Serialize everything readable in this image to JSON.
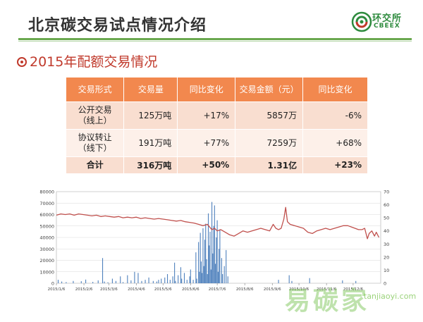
{
  "header": {
    "title": "北京碳交易试点情况介绍",
    "logo_cn": "环交所",
    "logo_en": "CBEEX",
    "subtitle": "2015年配额交易情况"
  },
  "table": {
    "headers": [
      "交易形式",
      "交易量",
      "同比变化",
      "交易金额（元）",
      "同比变化"
    ],
    "rows": [
      {
        "type_line1": "公开交易",
        "type_line2": "（线上）",
        "volume": "125万吨",
        "volume_change": "+17%",
        "amount": "5857万",
        "amount_change": "-6%"
      },
      {
        "type_line1": "协议转让",
        "type_line2": "（线下）",
        "volume": "191万吨",
        "volume_change": "+77%",
        "amount": "7259万",
        "amount_change": "+68%"
      },
      {
        "type_line1": "合计",
        "type_line2": "",
        "volume": "316万吨",
        "volume_change": "+50%",
        "amount": "1.31亿",
        "amount_change": "+23%"
      }
    ]
  },
  "watermark": {
    "cn": "易碳家",
    "en": "tanjiaoyi.com"
  },
  "chart_data": {
    "type": "bar+line",
    "x_ticks": [
      "2015/1/6",
      "2015/2/6",
      "2015/3/6",
      "2015/4/6",
      "2015/5/6",
      "2015/6/6",
      "2015/7/6",
      "2015/8/6",
      "2015/9/6",
      "2015/10/6",
      "2015/11/6",
      "2015/12/6"
    ],
    "y_left_ticks": [
      0,
      10000,
      20000,
      30000,
      40000,
      50000,
      60000,
      70000,
      80000
    ],
    "y_right_ticks": [
      0,
      10,
      20,
      30,
      40,
      50,
      60,
      70
    ],
    "ylim_left": [
      0,
      80000
    ],
    "ylim_right": [
      0,
      70
    ],
    "bar_color": "#4f81bd",
    "line_color": "#c0504d",
    "volume_bars": [
      {
        "day": 2,
        "value": 3000
      },
      {
        "day": 6,
        "value": 1500
      },
      {
        "day": 11,
        "value": 1000
      },
      {
        "day": 19,
        "value": 2000
      },
      {
        "day": 28,
        "value": 1800
      },
      {
        "day": 33,
        "value": 3200
      },
      {
        "day": 41,
        "value": 1200
      },
      {
        "day": 47,
        "value": 2500
      },
      {
        "day": 52,
        "value": 22000
      },
      {
        "day": 54,
        "value": 1500
      },
      {
        "day": 58,
        "value": 800
      },
      {
        "day": 63,
        "value": 4000
      },
      {
        "day": 67,
        "value": 2000
      },
      {
        "day": 72,
        "value": 6000
      },
      {
        "day": 75,
        "value": 1000
      },
      {
        "day": 80,
        "value": 7000
      },
      {
        "day": 84,
        "value": 2500
      },
      {
        "day": 88,
        "value": 10000
      },
      {
        "day": 92,
        "value": 9000
      },
      {
        "day": 96,
        "value": 2000
      },
      {
        "day": 100,
        "value": 3000
      },
      {
        "day": 104,
        "value": 5000
      },
      {
        "day": 109,
        "value": 2000
      },
      {
        "day": 113,
        "value": 1500
      },
      {
        "day": 115,
        "value": 3000
      },
      {
        "day": 118,
        "value": 4000
      },
      {
        "day": 122,
        "value": 5000
      },
      {
        "day": 125,
        "value": 8000
      },
      {
        "day": 128,
        "value": 3000
      },
      {
        "day": 131,
        "value": 6000
      },
      {
        "day": 133,
        "value": 18000
      },
      {
        "day": 134,
        "value": 2000
      },
      {
        "day": 137,
        "value": 7000
      },
      {
        "day": 140,
        "value": 14000
      },
      {
        "day": 141,
        "value": 4000
      },
      {
        "day": 144,
        "value": 9000
      },
      {
        "day": 147,
        "value": 3000
      },
      {
        "day": 150,
        "value": 6000
      },
      {
        "day": 151,
        "value": 12000
      },
      {
        "day": 154,
        "value": 3000
      },
      {
        "day": 157,
        "value": 27000
      },
      {
        "day": 158,
        "value": 4000
      },
      {
        "day": 160,
        "value": 36000
      },
      {
        "day": 161,
        "value": 10000
      },
      {
        "day": 162,
        "value": 44000
      },
      {
        "day": 163,
        "value": 19000
      },
      {
        "day": 164,
        "value": 9000
      },
      {
        "day": 165,
        "value": 48000
      },
      {
        "day": 166,
        "value": 15000
      },
      {
        "day": 167,
        "value": 38000
      },
      {
        "day": 168,
        "value": 52000
      },
      {
        "day": 169,
        "value": 21000
      },
      {
        "day": 170,
        "value": 8000
      },
      {
        "day": 171,
        "value": 61000
      },
      {
        "day": 172,
        "value": 33000
      },
      {
        "day": 173,
        "value": 45000
      },
      {
        "day": 174,
        "value": 12000
      },
      {
        "day": 175,
        "value": 71000
      },
      {
        "day": 176,
        "value": 26000
      },
      {
        "day": 177,
        "value": 50000
      },
      {
        "day": 178,
        "value": 68000
      },
      {
        "day": 179,
        "value": 17000
      },
      {
        "day": 180,
        "value": 40000
      },
      {
        "day": 181,
        "value": 55000
      },
      {
        "day": 182,
        "value": 10000
      },
      {
        "day": 183,
        "value": 30000
      },
      {
        "day": 184,
        "value": 47000
      },
      {
        "day": 186,
        "value": 22000
      },
      {
        "day": 187,
        "value": 8000
      },
      {
        "day": 189,
        "value": 15000
      },
      {
        "day": 191,
        "value": 29000
      },
      {
        "day": 193,
        "value": 6000
      },
      {
        "day": 250,
        "value": 3000
      },
      {
        "day": 262,
        "value": 7000
      },
      {
        "day": 265,
        "value": 2000
      },
      {
        "day": 285,
        "value": 4500
      },
      {
        "day": 322,
        "value": 2500
      },
      {
        "day": 337,
        "value": 2000
      }
    ],
    "price_line": [
      {
        "day": 0,
        "value": 52
      },
      {
        "day": 5,
        "value": 53
      },
      {
        "day": 10,
        "value": 52.5
      },
      {
        "day": 15,
        "value": 53
      },
      {
        "day": 20,
        "value": 52
      },
      {
        "day": 25,
        "value": 53
      },
      {
        "day": 30,
        "value": 52.5
      },
      {
        "day": 35,
        "value": 52
      },
      {
        "day": 40,
        "value": 51.5
      },
      {
        "day": 45,
        "value": 52
      },
      {
        "day": 50,
        "value": 51
      },
      {
        "day": 55,
        "value": 51.5
      },
      {
        "day": 60,
        "value": 51
      },
      {
        "day": 65,
        "value": 50.5
      },
      {
        "day": 70,
        "value": 51
      },
      {
        "day": 75,
        "value": 50
      },
      {
        "day": 80,
        "value": 50.5
      },
      {
        "day": 85,
        "value": 50
      },
      {
        "day": 90,
        "value": 50.5
      },
      {
        "day": 95,
        "value": 49.5
      },
      {
        "day": 100,
        "value": 50
      },
      {
        "day": 105,
        "value": 49.5
      },
      {
        "day": 110,
        "value": 49
      },
      {
        "day": 115,
        "value": 49.5
      },
      {
        "day": 120,
        "value": 49
      },
      {
        "day": 125,
        "value": 48.5
      },
      {
        "day": 130,
        "value": 48
      },
      {
        "day": 135,
        "value": 47.5
      },
      {
        "day": 140,
        "value": 48
      },
      {
        "day": 145,
        "value": 47
      },
      {
        "day": 150,
        "value": 46.5
      },
      {
        "day": 155,
        "value": 46
      },
      {
        "day": 160,
        "value": 45
      },
      {
        "day": 165,
        "value": 44
      },
      {
        "day": 170,
        "value": 45
      },
      {
        "day": 175,
        "value": 41
      },
      {
        "day": 178,
        "value": 42
      },
      {
        "day": 181,
        "value": 40
      },
      {
        "day": 185,
        "value": 41
      },
      {
        "day": 190,
        "value": 39
      },
      {
        "day": 195,
        "value": 37
      },
      {
        "day": 200,
        "value": 36
      },
      {
        "day": 205,
        "value": 38
      },
      {
        "day": 210,
        "value": 40
      },
      {
        "day": 215,
        "value": 39
      },
      {
        "day": 220,
        "value": 40
      },
      {
        "day": 225,
        "value": 41
      },
      {
        "day": 230,
        "value": 42
      },
      {
        "day": 235,
        "value": 41
      },
      {
        "day": 240,
        "value": 40
      },
      {
        "day": 244,
        "value": 45
      },
      {
        "day": 247,
        "value": 42
      },
      {
        "day": 250,
        "value": 41
      },
      {
        "day": 253,
        "value": 42
      },
      {
        "day": 256,
        "value": 49
      },
      {
        "day": 258,
        "value": 58
      },
      {
        "day": 260,
        "value": 47
      },
      {
        "day": 263,
        "value": 45
      },
      {
        "day": 268,
        "value": 44
      },
      {
        "day": 273,
        "value": 43
      },
      {
        "day": 278,
        "value": 42
      },
      {
        "day": 283,
        "value": 39
      },
      {
        "day": 288,
        "value": 38
      },
      {
        "day": 293,
        "value": 40
      },
      {
        "day": 298,
        "value": 41
      },
      {
        "day": 303,
        "value": 42
      },
      {
        "day": 308,
        "value": 41
      },
      {
        "day": 313,
        "value": 42
      },
      {
        "day": 318,
        "value": 43
      },
      {
        "day": 323,
        "value": 44
      },
      {
        "day": 328,
        "value": 44
      },
      {
        "day": 332,
        "value": 43
      },
      {
        "day": 336,
        "value": 42
      },
      {
        "day": 340,
        "value": 41
      },
      {
        "day": 344,
        "value": 41
      },
      {
        "day": 347,
        "value": 42
      },
      {
        "day": 350,
        "value": 34
      },
      {
        "day": 352,
        "value": 38
      },
      {
        "day": 355,
        "value": 40
      },
      {
        "day": 358,
        "value": 36
      },
      {
        "day": 360,
        "value": 39
      },
      {
        "day": 363,
        "value": 35
      }
    ],
    "xlim_days": [
      0,
      365
    ],
    "grid": "horizontal",
    "legend": "none"
  }
}
